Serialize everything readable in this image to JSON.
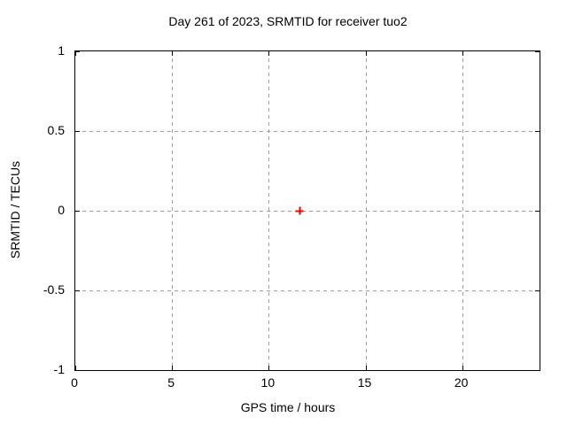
{
  "colors": {
    "grid": "#9e9e9e",
    "axis": "#000000",
    "text": "#000000",
    "background": "#ffffff",
    "marker": "#ff0000"
  },
  "chart_data": {
    "type": "scatter",
    "title": "Day 261 of 2023, SRMTID for receiver tuo2",
    "xlabel": "GPS time / hours",
    "ylabel": "SRMTID / TECUs",
    "xlim": [
      0,
      24
    ],
    "ylim": [
      -1,
      1
    ],
    "xticks": [
      0,
      5,
      10,
      15,
      20
    ],
    "yticks": [
      1,
      0.5,
      0,
      -0.5,
      -1
    ],
    "grid": true,
    "grid_style": "dashed",
    "tick_style": "inward-mirrored",
    "legend_position": "none",
    "series": [
      {
        "name": "SRMTID",
        "marker": "plus",
        "color": "#ff0000",
        "points": [
          [
            11.6,
            0.0
          ]
        ]
      }
    ]
  }
}
